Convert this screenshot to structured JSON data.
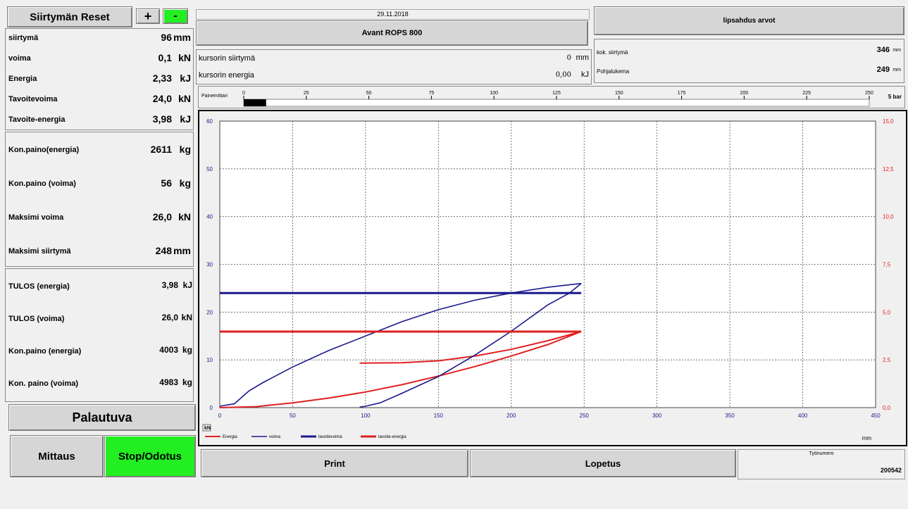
{
  "left": {
    "reset_label": "Siirtymän Reset",
    "plus_label": "+",
    "minus_label": "-",
    "top_rows": [
      {
        "label": "siirtymä",
        "value": "96",
        "unit": "mm"
      },
      {
        "label": "voima",
        "value": "0,1",
        "unit": "kN"
      },
      {
        "label": "Energia",
        "value": "2,33",
        "unit": "kJ"
      },
      {
        "label": "Tavoitevoima",
        "value": "24,0",
        "unit": "kN"
      },
      {
        "label": "Tavoite-energia",
        "value": "3,98",
        "unit": "kJ"
      }
    ],
    "mid_rows": [
      {
        "label": "Kon.paino(energia)",
        "value": "2611",
        "unit": "kg"
      },
      {
        "label": "Kon.paino (voima)",
        "value": "56",
        "unit": "kg"
      },
      {
        "label": "Maksimi voima",
        "value": "26,0",
        "unit": "kN"
      },
      {
        "label": "Maksimi siirtymä",
        "value": "248",
        "unit": "mm"
      }
    ],
    "result_rows": [
      {
        "label": "TULOS (energia)",
        "value": "3,98",
        "unit": "kJ"
      },
      {
        "label": "TULOS (voima)",
        "value": "26,0",
        "unit": "kN"
      },
      {
        "label": "Kon.paino (energia)",
        "value": "4003",
        "unit": "kg"
      },
      {
        "label": "Kon. paino (voima)",
        "value": "4983",
        "unit": "kg"
      }
    ],
    "palautuva_label": "Palautuva",
    "mittaus_label": "Mittaus",
    "stop_label": "Stop/Odotus"
  },
  "header": {
    "date": "29.11.2018",
    "title": "Avant ROPS 800",
    "cursor_disp_label": "kursorin siirtymä",
    "cursor_disp_value": "0",
    "cursor_disp_unit": "mm",
    "cursor_energy_label": "kursorin energia",
    "cursor_energy_value": "0,00",
    "cursor_energy_unit": "kJ"
  },
  "right_panel": {
    "button_label": "lipsahdus arvot",
    "kok_label": "kok. siirtymä",
    "kok_value": "346",
    "kok_unit": "mm",
    "pohja_label": "Pohjalukema",
    "pohja_value": "249",
    "pohja_unit": "mm"
  },
  "gauge": {
    "label": "Painemittari",
    "ticks": [
      "0",
      "25",
      "50",
      "75",
      "100",
      "125",
      "150",
      "175",
      "200",
      "225",
      "250"
    ],
    "value": 5,
    "max": 250,
    "unit_label": "5 bar"
  },
  "bottom": {
    "print_label": "Print",
    "lopetus_label": "Lopetus",
    "tyonumero_label": "Työnumero",
    "tyonumero_value": "200542"
  },
  "chart_data": {
    "type": "line",
    "xlabel": "mm",
    "ylabel": "kN",
    "xlim": [
      0,
      450
    ],
    "ylim_left": [
      0,
      60
    ],
    "ylim_right": [
      0,
      15
    ],
    "x_ticks": [
      "0",
      "50",
      "100",
      "150",
      "200",
      "250",
      "300",
      "350",
      "400",
      "450"
    ],
    "y_left_ticks": [
      "0",
      "10",
      "20",
      "30",
      "40",
      "50",
      "60"
    ],
    "y_right_ticks": [
      "0,0",
      "2,5",
      "5,0",
      "7,5",
      "10,0",
      "12,5",
      "15,0"
    ],
    "grid": true,
    "legend_position": "bottom-left",
    "colors": {
      "energia": "#e02020",
      "voima": "#1a1a8c",
      "tavoitevoima": "#1a1a8c",
      "tavoite_energia": "#e02020",
      "right_axis": "#e02020",
      "left_axis": "#1a1a8c"
    },
    "series": [
      {
        "name": "Energia",
        "axis": "right",
        "x": [
          0,
          25,
          50,
          75,
          100,
          125,
          150,
          175,
          200,
          225,
          248
        ],
        "y": [
          0,
          0.05,
          0.25,
          0.5,
          0.82,
          1.2,
          1.65,
          2.15,
          2.7,
          3.3,
          3.98
        ]
      },
      {
        "name": "Energia (unload)",
        "axis": "right",
        "x": [
          96,
          125,
          150,
          175,
          200,
          225,
          248
        ],
        "y": [
          2.33,
          2.35,
          2.45,
          2.7,
          3.05,
          3.5,
          3.98
        ]
      },
      {
        "name": "voima",
        "axis": "left",
        "x": [
          0,
          10,
          20,
          30,
          50,
          75,
          100,
          125,
          150,
          175,
          200,
          225,
          248
        ],
        "y": [
          0.3,
          0.8,
          3.5,
          5.3,
          8.5,
          12,
          15,
          18,
          20.5,
          22.5,
          24,
          25.2,
          26
        ]
      },
      {
        "name": "voima (unload)",
        "axis": "left",
        "x": [
          248,
          240,
          225,
          200,
          175,
          150,
          125,
          110,
          100,
          96
        ],
        "y": [
          26,
          24,
          21.5,
          16,
          11,
          6.5,
          3,
          1,
          0.3,
          0.1
        ]
      },
      {
        "name": "tavoitevoima",
        "axis": "left",
        "x": [
          0,
          248
        ],
        "y": [
          24,
          24
        ]
      },
      {
        "name": "tavoite-energia",
        "axis": "right",
        "x": [
          0,
          248
        ],
        "y": [
          3.98,
          3.98
        ]
      }
    ],
    "legend": [
      "Energia",
      "voima",
      "tavoitevoima",
      "tavoite-energia"
    ]
  }
}
